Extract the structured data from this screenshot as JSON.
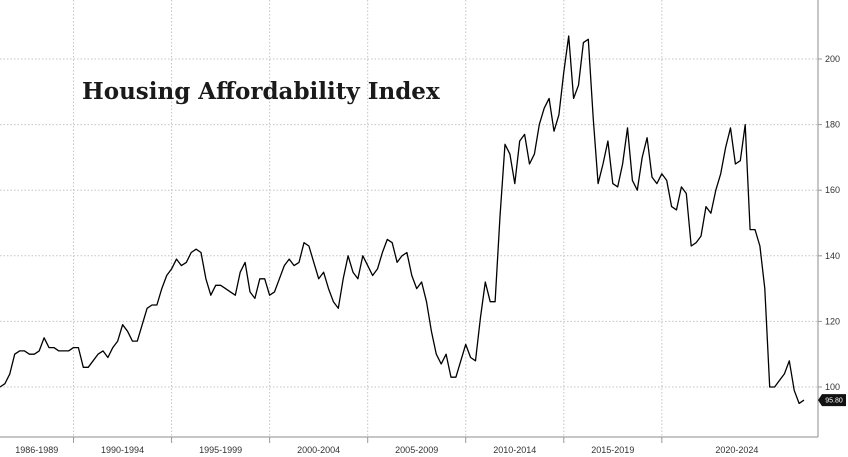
{
  "chart_data": {
    "type": "line",
    "title": "Housing Affordability Index",
    "xlabel": "",
    "ylabel": "",
    "ylim": [
      88,
      220
    ],
    "yticks": [
      100,
      120,
      140,
      160,
      180,
      200
    ],
    "x_tick_labels": [
      "1986-1989",
      "1990-1994",
      "1995-1999",
      "2000-2004",
      "2005-2009",
      "2010-2014",
      "2015-2019",
      "2020-2024"
    ],
    "last_value_label": "95.80",
    "grid": true,
    "line_color": "#000000",
    "series": [
      {
        "values": [
          100,
          101,
          104,
          110,
          111,
          111,
          110,
          110,
          111,
          115,
          112,
          112,
          111,
          111,
          111,
          112,
          112,
          106,
          106,
          108,
          110,
          111,
          109,
          112,
          114,
          119,
          117,
          114,
          114,
          119,
          124,
          125,
          125,
          130,
          134,
          136,
          139,
          137,
          138,
          141,
          142,
          141,
          133,
          128,
          131,
          131,
          130,
          129,
          128,
          135,
          138,
          129,
          127,
          133,
          133,
          128,
          129,
          133,
          137,
          139,
          137,
          138,
          144,
          143,
          138,
          133,
          135,
          130,
          126,
          124,
          133,
          140,
          135,
          133,
          140,
          137,
          134,
          136,
          141,
          145,
          144,
          138,
          140,
          141,
          134,
          130,
          132,
          126,
          117,
          110,
          107,
          110,
          103,
          103,
          108,
          113,
          109,
          108,
          121,
          132,
          126,
          126,
          152,
          174,
          171,
          162,
          175,
          177,
          168,
          171,
          180,
          185,
          188,
          178,
          183,
          196,
          207,
          188,
          192,
          205,
          206,
          182,
          162,
          168,
          175,
          162,
          161,
          168,
          179,
          163,
          160,
          170,
          176,
          164,
          162,
          165,
          163,
          155,
          154,
          161,
          159,
          143,
          144,
          146,
          155,
          153,
          160,
          165,
          173,
          179,
          168,
          169,
          180,
          148,
          148,
          143,
          130,
          100,
          100,
          102,
          104,
          108,
          99,
          95,
          96
        ]
      }
    ]
  }
}
